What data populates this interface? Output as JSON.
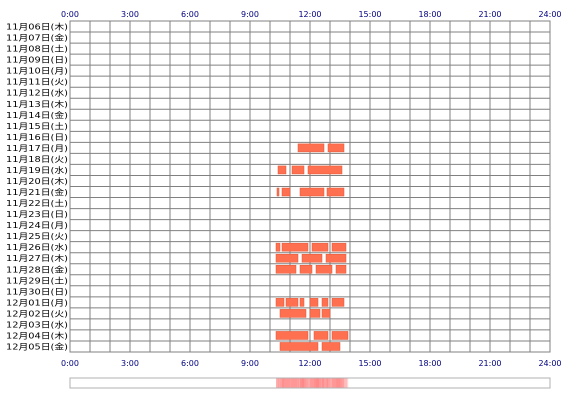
{
  "chart_data": {
    "type": "timeline",
    "title": "",
    "xlabel": "",
    "ylabel": "",
    "x_unit": "hours",
    "x_range": [
      0,
      24
    ],
    "x_ticks": [
      "0:00",
      "3:00",
      "6:00",
      "9:00",
      "12:00",
      "15:00",
      "18:00",
      "21:00",
      "24:00"
    ],
    "grid": true,
    "rows": [
      {
        "label": "11月06日(木)",
        "segments": []
      },
      {
        "label": "11月07日(金)",
        "segments": []
      },
      {
        "label": "11月08日(土)",
        "segments": []
      },
      {
        "label": "11月09日(日)",
        "segments": []
      },
      {
        "label": "11月10日(月)",
        "segments": []
      },
      {
        "label": "11月11日(火)",
        "segments": []
      },
      {
        "label": "11月12日(水)",
        "segments": []
      },
      {
        "label": "11月13日(木)",
        "segments": []
      },
      {
        "label": "11月14日(金)",
        "segments": []
      },
      {
        "label": "11月15日(土)",
        "segments": []
      },
      {
        "label": "11月16日(日)",
        "segments": []
      },
      {
        "label": "11月17日(月)",
        "segments": [
          [
            11.4,
            12.7
          ],
          [
            12.9,
            13.7
          ]
        ]
      },
      {
        "label": "11月18日(火)",
        "segments": []
      },
      {
        "label": "11月19日(水)",
        "segments": [
          [
            10.4,
            10.8
          ],
          [
            11.1,
            11.7
          ],
          [
            11.9,
            13.6
          ]
        ]
      },
      {
        "label": "11月20日(木)",
        "segments": []
      },
      {
        "label": "11月21日(金)",
        "segments": [
          [
            10.35,
            10.45
          ],
          [
            10.6,
            11.0
          ],
          [
            11.5,
            12.7
          ],
          [
            12.85,
            13.7
          ]
        ]
      },
      {
        "label": "11月22日(土)",
        "segments": []
      },
      {
        "label": "11月23日(日)",
        "segments": []
      },
      {
        "label": "11月24日(月)",
        "segments": []
      },
      {
        "label": "11月25日(火)",
        "segments": []
      },
      {
        "label": "11月26日(水)",
        "segments": [
          [
            10.3,
            10.5
          ],
          [
            10.6,
            11.9
          ],
          [
            12.1,
            12.9
          ],
          [
            13.1,
            13.8
          ]
        ]
      },
      {
        "label": "11月27日(木)",
        "segments": [
          [
            10.3,
            11.4
          ],
          [
            11.6,
            12.6
          ],
          [
            12.8,
            13.8
          ]
        ]
      },
      {
        "label": "11月28日(金)",
        "segments": [
          [
            10.3,
            11.3
          ],
          [
            11.5,
            12.1
          ],
          [
            12.3,
            13.1
          ],
          [
            13.3,
            13.8
          ]
        ]
      },
      {
        "label": "11月29日(土)",
        "segments": []
      },
      {
        "label": "11月30日(日)",
        "segments": []
      },
      {
        "label": "12月01日(月)",
        "segments": [
          [
            10.3,
            10.7
          ],
          [
            10.8,
            11.4
          ],
          [
            11.5,
            11.7
          ],
          [
            12.0,
            12.4
          ],
          [
            12.6,
            12.9
          ],
          [
            13.1,
            13.7
          ]
        ]
      },
      {
        "label": "12月02日(火)",
        "segments": [
          [
            10.5,
            11.8
          ],
          [
            12.0,
            12.5
          ],
          [
            12.6,
            13.0
          ]
        ]
      },
      {
        "label": "12月03日(水)",
        "segments": []
      },
      {
        "label": "12月04日(木)",
        "segments": [
          [
            10.3,
            11.9
          ],
          [
            12.2,
            12.9
          ],
          [
            13.1,
            13.9
          ]
        ]
      },
      {
        "label": "12月05日(金)",
        "segments": [
          [
            10.5,
            12.4
          ],
          [
            12.6,
            13.5
          ]
        ]
      }
    ],
    "colors": {
      "bar": "#ff7050",
      "bar_stroke": "#e05535",
      "grid": "#808080",
      "tick_text": "#000080",
      "summary_base": "#fff0f0",
      "summary_heat": "#ff8888"
    }
  }
}
